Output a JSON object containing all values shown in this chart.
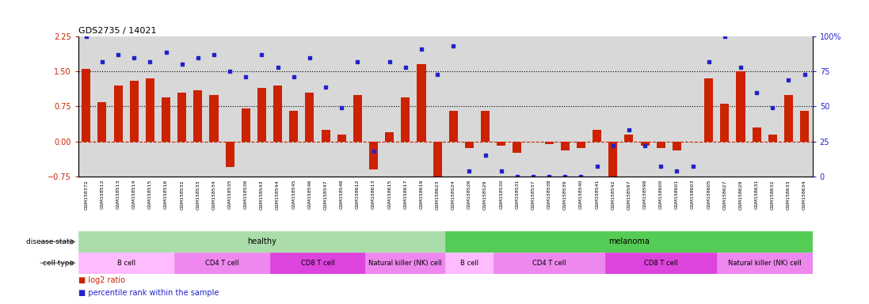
{
  "title": "GDS2735 / 14021",
  "samples": [
    "GSM158372",
    "GSM158512",
    "GSM158513",
    "GSM158514",
    "GSM158515",
    "GSM158516",
    "GSM158532",
    "GSM158533",
    "GSM158534",
    "GSM158535",
    "GSM158536",
    "GSM158543",
    "GSM158544",
    "GSM158545",
    "GSM158546",
    "GSM158547",
    "GSM158548",
    "GSM158612",
    "GSM158613",
    "GSM158615",
    "GSM158617",
    "GSM158619",
    "GSM158623",
    "GSM158524",
    "GSM158526",
    "GSM158529",
    "GSM158530",
    "GSM158531",
    "GSM158537",
    "GSM158538",
    "GSM158539",
    "GSM158540",
    "GSM158541",
    "GSM158542",
    "GSM158597",
    "GSM158598",
    "GSM158600",
    "GSM158601",
    "GSM158603",
    "GSM158605",
    "GSM158627",
    "GSM158629",
    "GSM158631",
    "GSM158632",
    "GSM158633",
    "GSM158634"
  ],
  "log2_ratio": [
    1.55,
    0.85,
    1.2,
    1.3,
    1.35,
    0.95,
    1.05,
    1.1,
    1.0,
    -0.55,
    0.7,
    1.15,
    1.2,
    0.65,
    1.05,
    0.25,
    0.15,
    1.0,
    -0.6,
    0.2,
    0.95,
    1.65,
    -0.75,
    0.65,
    -0.15,
    0.65,
    -0.1,
    -0.25,
    0.0,
    -0.05,
    -0.2,
    -0.15,
    0.25,
    -0.9,
    0.15,
    -0.1,
    -0.15,
    -0.2,
    0.0,
    1.35,
    0.8,
    1.5,
    0.3,
    0.15,
    1.0,
    0.65
  ],
  "pct_rank": [
    100,
    82,
    87,
    85,
    82,
    89,
    80,
    85,
    87,
    75,
    71,
    87,
    78,
    71,
    85,
    64,
    49,
    82,
    18,
    82,
    78,
    91,
    73,
    93,
    4,
    15,
    4,
    0,
    0,
    0,
    0,
    0,
    7,
    22,
    33,
    22,
    7,
    4,
    7,
    82,
    100,
    78,
    60,
    49,
    69,
    73
  ],
  "cell_type_groups": [
    {
      "label": "B cell",
      "start": 0,
      "end": 6,
      "color": "#ffbbff"
    },
    {
      "label": "CD4 T cell",
      "start": 6,
      "end": 12,
      "color": "#ee88ee"
    },
    {
      "label": "CD8 T cell",
      "start": 12,
      "end": 18,
      "color": "#dd44dd"
    },
    {
      "label": "Natural killer (NK) cell",
      "start": 18,
      "end": 23,
      "color": "#ee88ee"
    },
    {
      "label": "B cell",
      "start": 23,
      "end": 26,
      "color": "#ffbbff"
    },
    {
      "label": "CD4 T cell",
      "start": 26,
      "end": 33,
      "color": "#ee88ee"
    },
    {
      "label": "CD8 T cell",
      "start": 33,
      "end": 40,
      "color": "#dd44dd"
    },
    {
      "label": "Natural killer (NK) cell",
      "start": 40,
      "end": 46,
      "color": "#ee88ee"
    }
  ],
  "disease_state_groups": [
    {
      "label": "healthy",
      "start": 0,
      "end": 23,
      "color": "#aaddaa"
    },
    {
      "label": "melanoma",
      "start": 23,
      "end": 46,
      "color": "#55cc55"
    }
  ],
  "ylim_left": [
    -0.75,
    2.25
  ],
  "ylim_right": [
    0,
    100
  ],
  "yticks_left": [
    -0.75,
    0,
    0.75,
    1.5,
    2.25
  ],
  "yticks_right": [
    0,
    25,
    50,
    75,
    100
  ],
  "hlines": [
    0.75,
    1.5
  ],
  "bar_color": "#cc2200",
  "dot_color": "#2222cc",
  "zero_line_color": "#cc2200",
  "bg_color": "#d8d8d8"
}
